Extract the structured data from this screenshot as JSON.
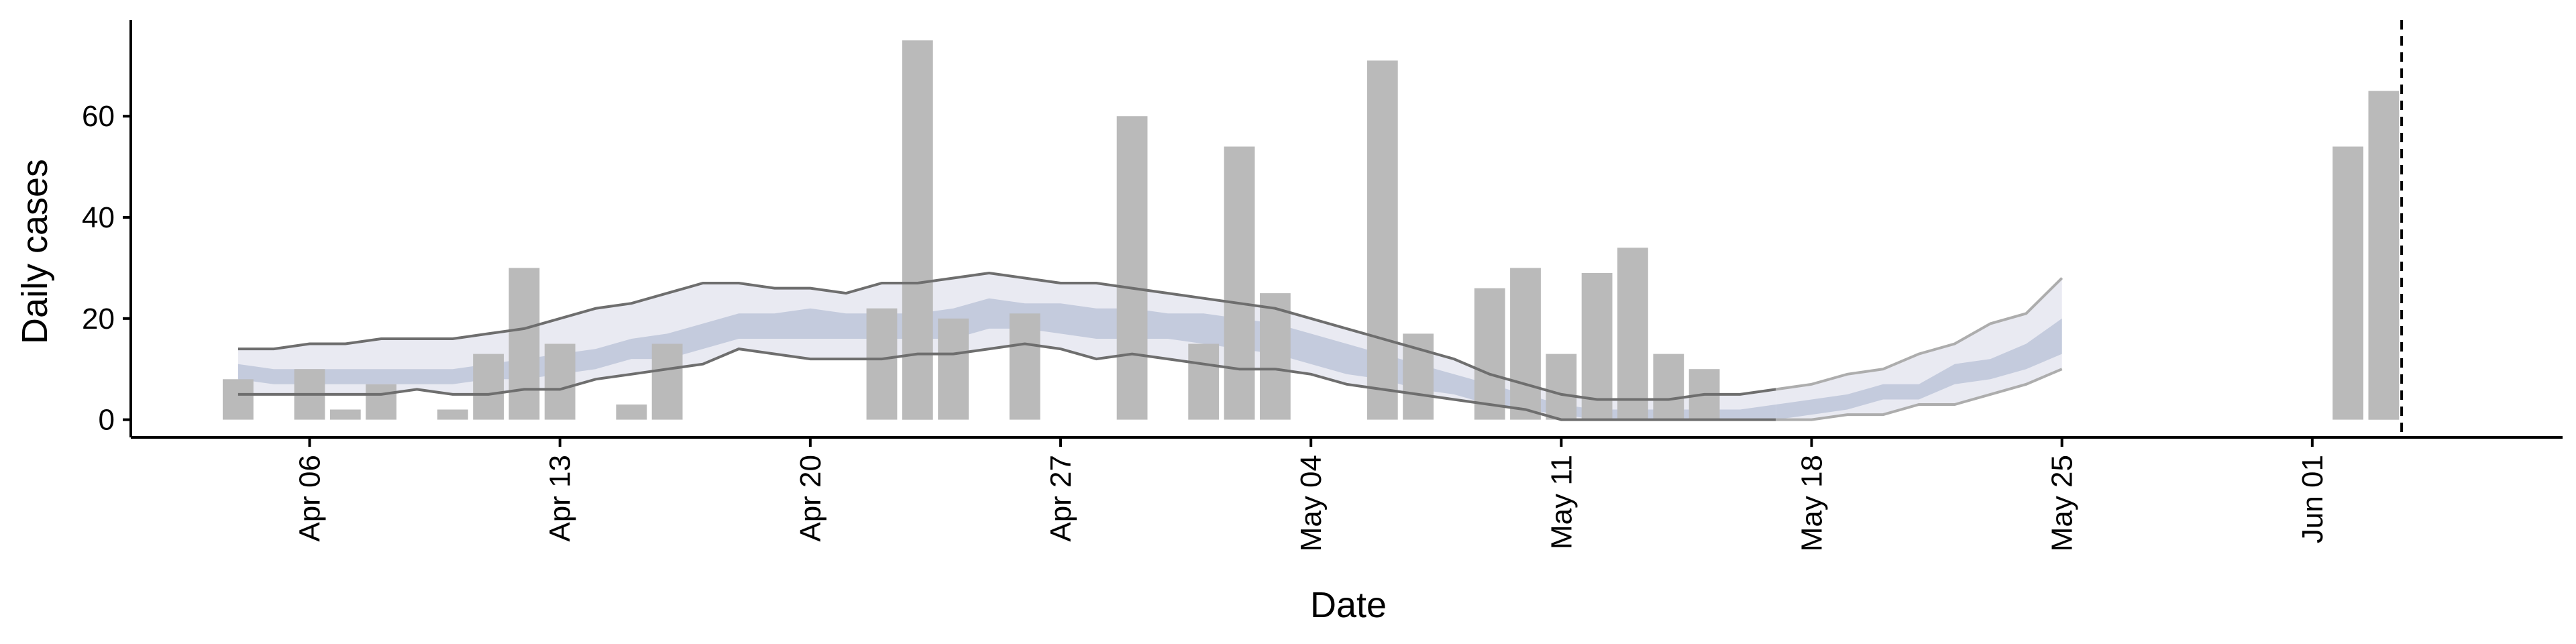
{
  "chart_data": {
    "type": "bar",
    "xlabel": "Date",
    "ylabel": "Daily cases",
    "ylim": [
      -3.5,
      79
    ],
    "yticks": [
      0,
      20,
      40,
      60
    ],
    "x_axis": {
      "start": "2020-04-01",
      "end": "2020-06-08",
      "ticks": [
        {
          "date": "2020-04-06",
          "label": "Apr 06"
        },
        {
          "date": "2020-04-13",
          "label": "Apr 13"
        },
        {
          "date": "2020-04-20",
          "label": "Apr 20"
        },
        {
          "date": "2020-04-27",
          "label": "Apr 27"
        },
        {
          "date": "2020-05-04",
          "label": "May 04"
        },
        {
          "date": "2020-05-11",
          "label": "May 11"
        },
        {
          "date": "2020-05-18",
          "label": "May 18"
        },
        {
          "date": "2020-05-25",
          "label": "May 25"
        },
        {
          "date": "2020-06-01",
          "label": "Jun 01"
        }
      ]
    },
    "grid": false,
    "legend": "none",
    "colors": {
      "bars": "#bababa",
      "outer_band": "#e9eaf2",
      "inner_band": "#c4cbdd",
      "bound_lines": "#6e6e6e",
      "forecast_lines": "#adadad",
      "vline": "#000000"
    },
    "observed_cases": [
      {
        "date": "2020-04-04",
        "value": 8
      },
      {
        "date": "2020-04-06",
        "value": 10
      },
      {
        "date": "2020-04-07",
        "value": 2
      },
      {
        "date": "2020-04-08",
        "value": 7
      },
      {
        "date": "2020-04-10",
        "value": 2
      },
      {
        "date": "2020-04-11",
        "value": 13
      },
      {
        "date": "2020-04-12",
        "value": 30
      },
      {
        "date": "2020-04-13",
        "value": 15
      },
      {
        "date": "2020-04-15",
        "value": 3
      },
      {
        "date": "2020-04-16",
        "value": 15
      },
      {
        "date": "2020-04-22",
        "value": 22
      },
      {
        "date": "2020-04-23",
        "value": 75
      },
      {
        "date": "2020-04-24",
        "value": 20
      },
      {
        "date": "2020-04-26",
        "value": 21
      },
      {
        "date": "2020-04-29",
        "value": 60
      },
      {
        "date": "2020-05-01",
        "value": 15
      },
      {
        "date": "2020-05-02",
        "value": 54
      },
      {
        "date": "2020-05-03",
        "value": 25
      },
      {
        "date": "2020-05-06",
        "value": 71
      },
      {
        "date": "2020-05-07",
        "value": 17
      },
      {
        "date": "2020-05-09",
        "value": 26
      },
      {
        "date": "2020-05-10",
        "value": 30
      },
      {
        "date": "2020-05-11",
        "value": 13
      },
      {
        "date": "2020-05-12",
        "value": 29
      },
      {
        "date": "2020-05-13",
        "value": 34
      },
      {
        "date": "2020-05-14",
        "value": 13
      },
      {
        "date": "2020-05-15",
        "value": 10
      },
      {
        "date": "2020-06-02",
        "value": 54
      },
      {
        "date": "2020-06-03",
        "value": 65
      }
    ],
    "estimate": {
      "dates": [
        "2020-04-04",
        "2020-04-05",
        "2020-04-06",
        "2020-04-07",
        "2020-04-08",
        "2020-04-09",
        "2020-04-10",
        "2020-04-11",
        "2020-04-12",
        "2020-04-13",
        "2020-04-14",
        "2020-04-15",
        "2020-04-16",
        "2020-04-17",
        "2020-04-18",
        "2020-04-19",
        "2020-04-20",
        "2020-04-21",
        "2020-04-22",
        "2020-04-23",
        "2020-04-24",
        "2020-04-25",
        "2020-04-26",
        "2020-04-27",
        "2020-04-28",
        "2020-04-29",
        "2020-04-30",
        "2020-05-01",
        "2020-05-02",
        "2020-05-03",
        "2020-05-04",
        "2020-05-05",
        "2020-05-06",
        "2020-05-07",
        "2020-05-08",
        "2020-05-09",
        "2020-05-10",
        "2020-05-11",
        "2020-05-12",
        "2020-05-13",
        "2020-05-14",
        "2020-05-15",
        "2020-05-16",
        "2020-05-17"
      ],
      "outer_upper": [
        14,
        14,
        15,
        15,
        16,
        16,
        16,
        17,
        18,
        20,
        22,
        23,
        25,
        27,
        27,
        26,
        26,
        25,
        27,
        27,
        28,
        29,
        28,
        27,
        27,
        26,
        25,
        24,
        23,
        22,
        20,
        18,
        16,
        14,
        12,
        9,
        7,
        5,
        4,
        4,
        4,
        5,
        5,
        6
      ],
      "outer_lower": [
        5,
        5,
        5,
        5,
        5,
        6,
        5,
        5,
        6,
        6,
        8,
        9,
        10,
        11,
        14,
        13,
        12,
        12,
        12,
        13,
        13,
        14,
        15,
        14,
        12,
        13,
        12,
        11,
        10,
        10,
        9,
        7,
        6,
        5,
        4,
        3,
        2,
        0,
        0,
        0,
        0,
        0,
        0,
        0
      ],
      "inner_upper": [
        11,
        10,
        10,
        10,
        10,
        10,
        10,
        11,
        12,
        13,
        14,
        16,
        17,
        19,
        21,
        21,
        22,
        21,
        21,
        21,
        22,
        24,
        23,
        23,
        22,
        22,
        21,
        21,
        20,
        19,
        17,
        15,
        13,
        11,
        9,
        7,
        5,
        3,
        2,
        2,
        2,
        2,
        2,
        3
      ],
      "inner_lower": [
        8,
        7,
        7,
        7,
        7,
        7,
        7,
        8,
        8,
        9,
        10,
        12,
        12,
        14,
        16,
        16,
        16,
        16,
        16,
        16,
        16,
        18,
        18,
        17,
        16,
        16,
        16,
        15,
        14,
        13,
        11,
        9,
        8,
        6,
        5,
        3,
        2,
        1,
        0,
        0,
        0,
        0,
        0,
        0
      ]
    },
    "forecast": {
      "dates": [
        "2020-05-17",
        "2020-05-18",
        "2020-05-19",
        "2020-05-20",
        "2020-05-21",
        "2020-05-22",
        "2020-05-23",
        "2020-05-24",
        "2020-05-25"
      ],
      "outer_upper": [
        6,
        7,
        9,
        10,
        13,
        15,
        19,
        21,
        28
      ],
      "outer_lower": [
        0,
        0,
        1,
        1,
        3,
        3,
        5,
        7,
        10
      ],
      "inner_upper": [
        3,
        4,
        5,
        7,
        7,
        11,
        12,
        15,
        20
      ],
      "inner_lower": [
        0,
        1,
        2,
        4,
        4,
        7,
        8,
        10,
        13
      ]
    },
    "vline": {
      "date": "2020-06-03",
      "style": "dashed"
    }
  }
}
